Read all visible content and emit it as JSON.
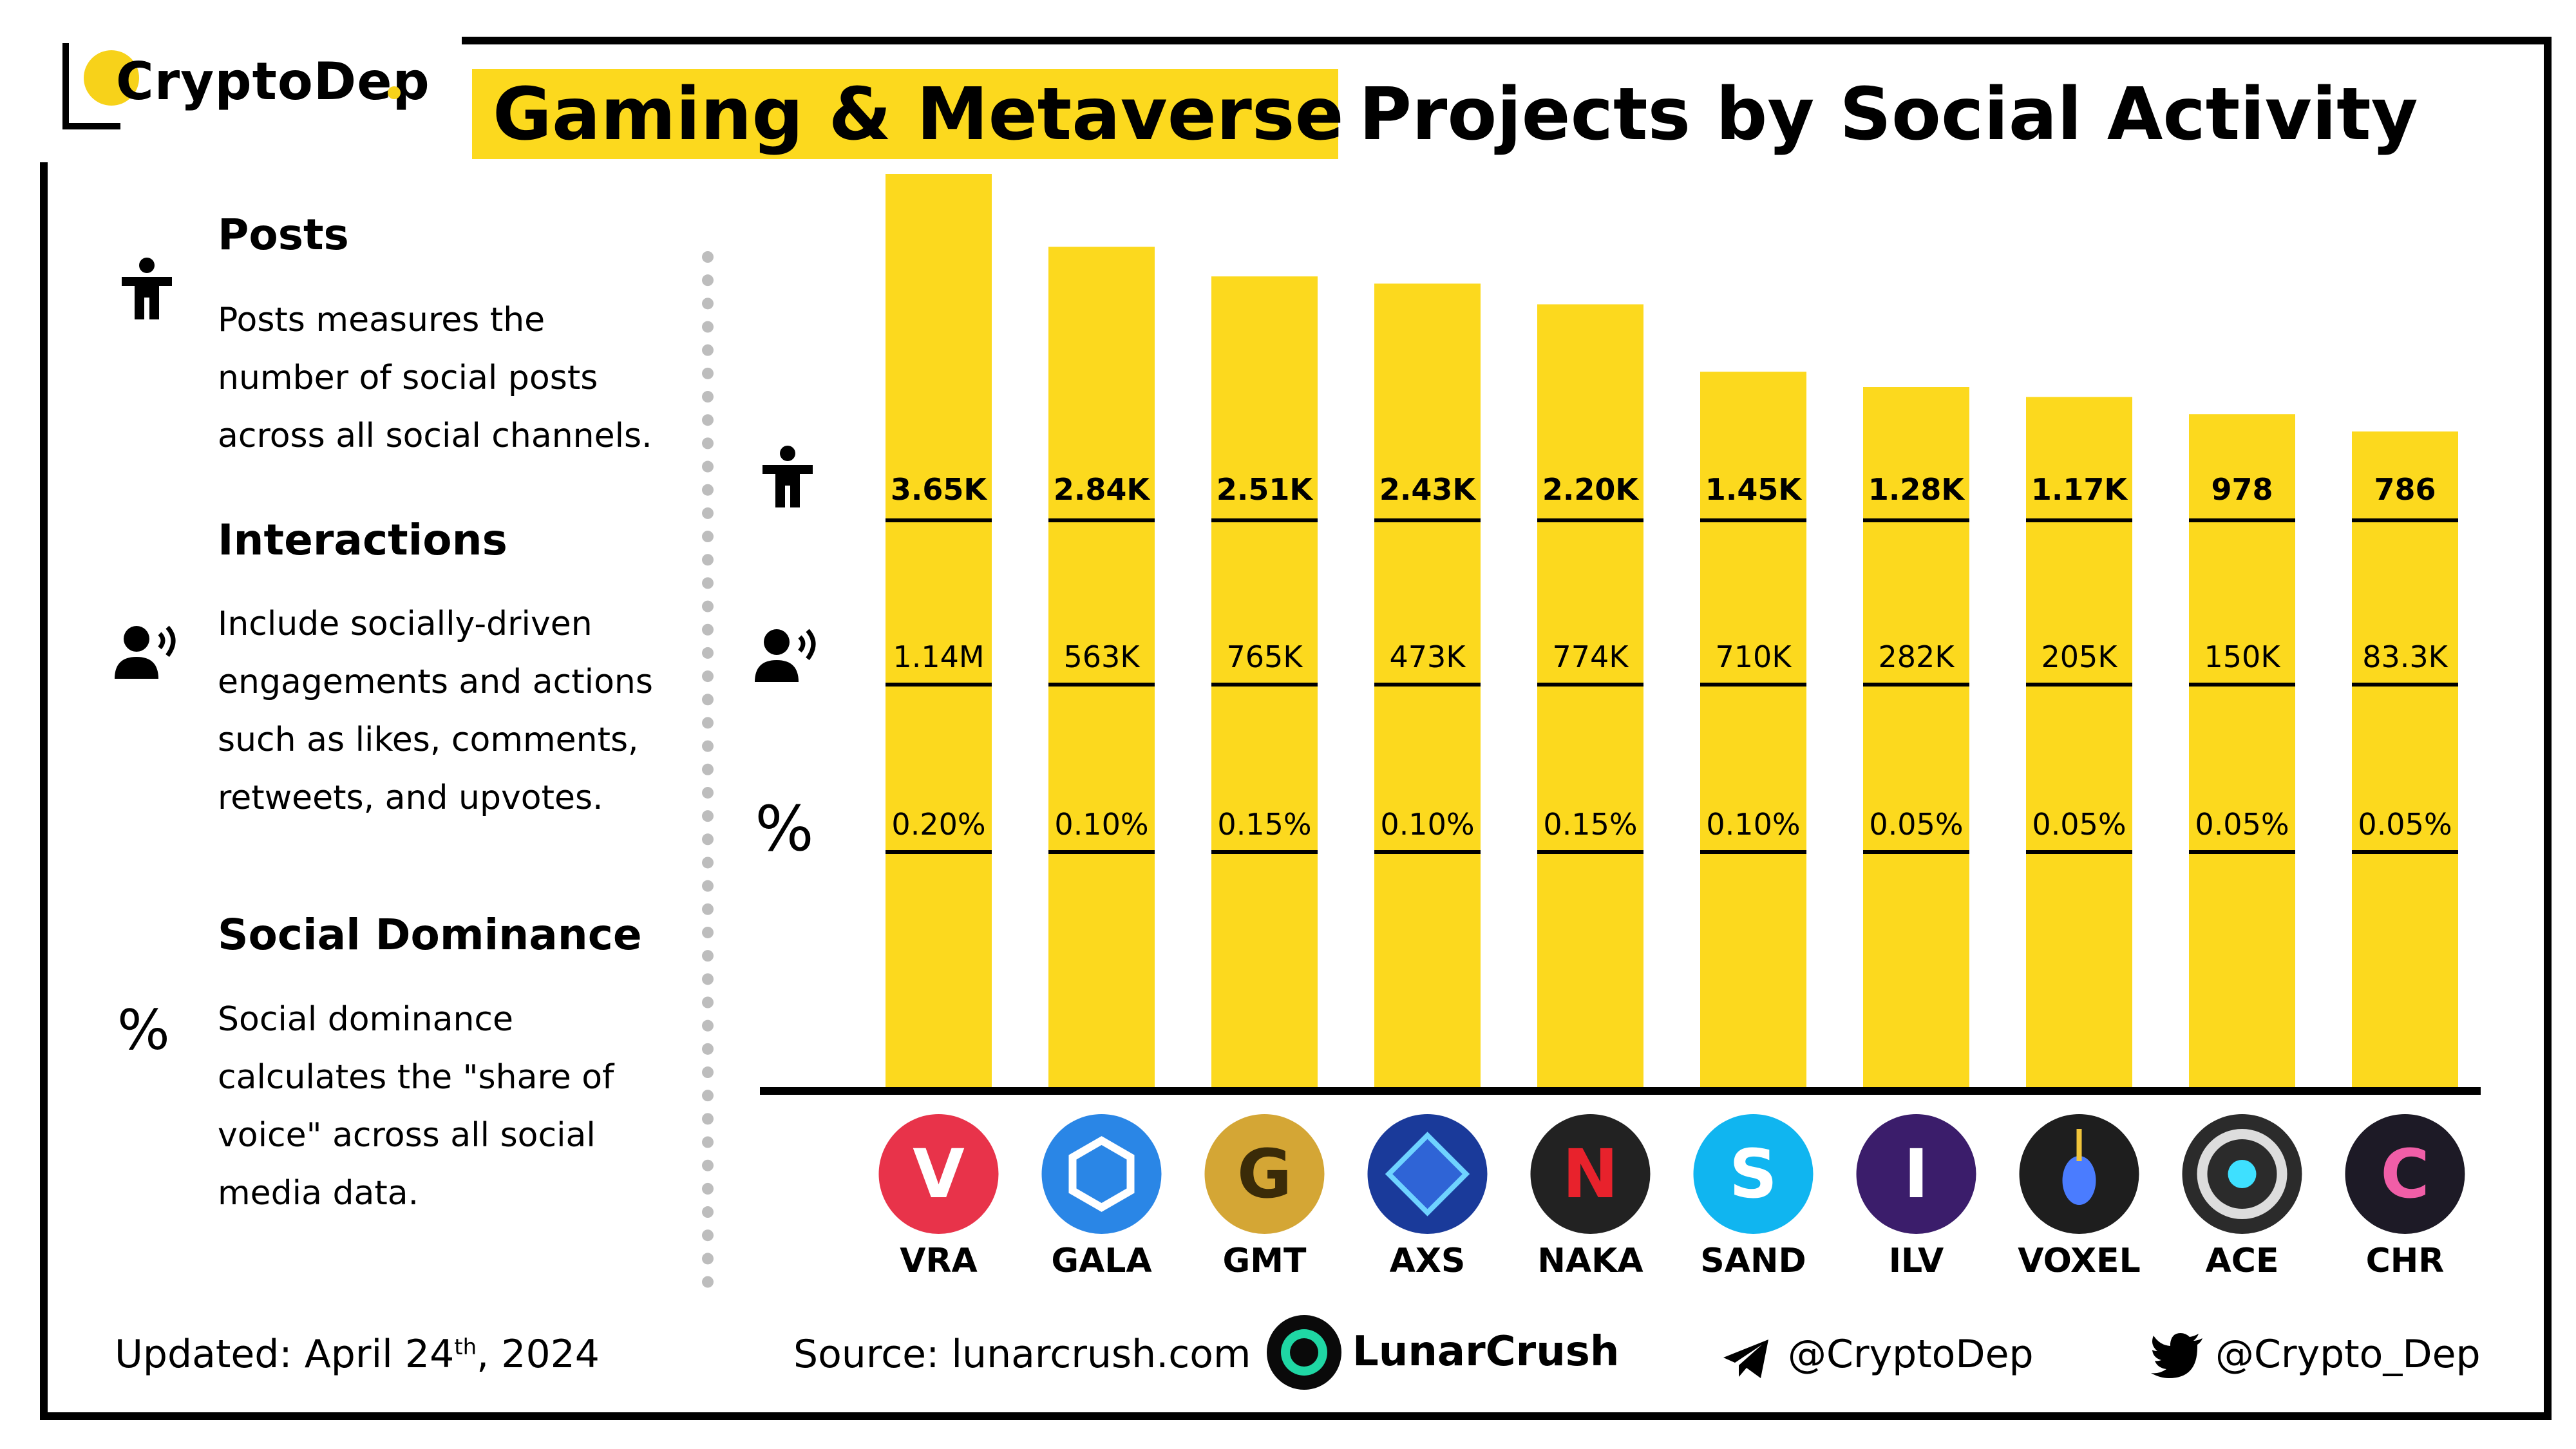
{
  "brand": {
    "name": "CryptoDep"
  },
  "title": {
    "highlight": "Gaming & Metaverse",
    "rest": "Projects by Social Activity"
  },
  "legend": {
    "posts": {
      "heading": "Posts",
      "lines": [
        "Posts measures the",
        "number of social posts",
        "across all social channels."
      ]
    },
    "interactions": {
      "heading": "Interactions",
      "lines": [
        "Include socially-driven",
        "engagements and actions",
        "such as likes, comments,",
        "retweets, and upvotes."
      ]
    },
    "dominance": {
      "heading": "Social Dominance",
      "symbol": "%",
      "lines": [
        "Social dominance",
        "calculates the \"share of",
        "voice\" across all social",
        "media data."
      ]
    }
  },
  "chart_data": {
    "type": "bar",
    "categories": [
      "VRA",
      "GALA",
      "GMT",
      "AXS",
      "NAKA",
      "SAND",
      "ILV",
      "VOXEL",
      "ACE",
      "CHR"
    ],
    "series": [
      {
        "values": [
          3650,
          2840,
          2510,
          2430,
          2200,
          1450,
          1280,
          1170,
          978,
          786
        ]
      },
      {
        "values": [
          1140000,
          563000,
          765000,
          473000,
          774000,
          710000,
          282000,
          205000,
          150000,
          83300
        ]
      },
      {
        "values": [
          0.2,
          0.1,
          0.15,
          0.1,
          0.15,
          0.1,
          0.05,
          0.05,
          0.05,
          0.05
        ]
      }
    ],
    "labels": {
      "posts": [
        "3.65K",
        "2.84K",
        "2.51K",
        "2.43K",
        "2.20K",
        "1.45K",
        "1.28K",
        "1.17K",
        "978",
        "786"
      ],
      "interactions": [
        "1.14M",
        "563K",
        "765K",
        "473K",
        "774K",
        "710K",
        "282K",
        "205K",
        "150K",
        "83.3K"
      ],
      "dominance": [
        "0.20%",
        "0.10%",
        "0.15%",
        "0.10%",
        "0.15%",
        "0.10%",
        "0.05%",
        "0.05%",
        "0.05%",
        "0.05%"
      ]
    },
    "bar_color": "#fcd91e",
    "row_symbols": {
      "posts": "person-icon",
      "interactions": "speaking-person-icon",
      "dominance": "%"
    }
  },
  "logos": [
    {
      "name": "vra-logo",
      "bg": "#e8334a",
      "fg": "#ffffff",
      "glyph": "V"
    },
    {
      "name": "gala-logo",
      "bg": "#2a86e6",
      "fg": "#ffffff",
      "glyph": "hex"
    },
    {
      "name": "gmt-logo",
      "bg": "#d4a635",
      "fg": "#3a2b08",
      "glyph": "G"
    },
    {
      "name": "axs-logo",
      "bg": "#1a3a9a",
      "fg": "#6fd3ff",
      "glyph": "diamond"
    },
    {
      "name": "naka-logo",
      "bg": "#222222",
      "fg": "#e8222c",
      "glyph": "N"
    },
    {
      "name": "sand-logo",
      "bg": "#10b5f0",
      "fg": "#ffffff",
      "glyph": "S"
    },
    {
      "name": "ilv-logo",
      "bg": "#3b1d6b",
      "fg": "#ffffff",
      "glyph": "I"
    },
    {
      "name": "voxel-logo",
      "bg": "#1e1e1e",
      "fg": "#4a7cff",
      "glyph": "drop"
    },
    {
      "name": "ace-logo",
      "bg": "#2b2b2b",
      "fg": "#3ee0ff",
      "glyph": "ring"
    },
    {
      "name": "chr-logo",
      "bg": "#1d1a26",
      "fg": "#f05ea7",
      "glyph": "C"
    }
  ],
  "footer": {
    "updated_label": "Updated:",
    "updated_date_day": "April 24",
    "updated_date_sup": "th",
    "updated_date_year": ", 2024",
    "source_label": "Source:",
    "source_value": "lunarcrush.com",
    "lunarcrush": "LunarCrush",
    "telegram": "@CryptoDep",
    "twitter": "@Crypto_Dep"
  },
  "colors": {
    "accent_yellow": "#fcd91e",
    "frame": "#000000"
  }
}
